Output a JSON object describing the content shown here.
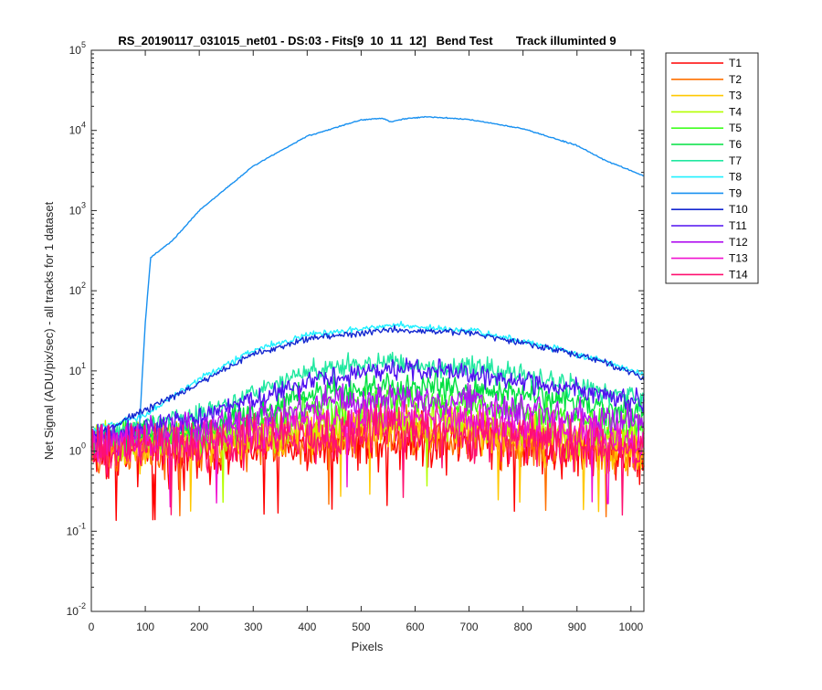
{
  "chart_data": {
    "type": "line",
    "title": "RS_20190117_031015_net01 - DS:03 - Fits[9  10  11  12]   Bend Test       Track illuminted 9",
    "xlabel": "Pixels",
    "ylabel": "Net Signal (ADU/pix/sec) - all tracks for 1 dataset",
    "xlim": [
      0,
      1024
    ],
    "ylim": [
      0.01,
      100000
    ],
    "yscale": "log",
    "grid": false,
    "legend_position": "outside-top-right",
    "x_ticks": [
      0,
      100,
      200,
      300,
      400,
      500,
      600,
      700,
      800,
      900,
      1000
    ],
    "x_tick_labels": [
      "0",
      "100",
      "200",
      "300",
      "400",
      "500",
      "600",
      "700",
      "800",
      "900",
      "1000"
    ],
    "y_tick_labels": [
      {
        "base": "10",
        "exp": "-2"
      },
      {
        "base": "10",
        "exp": "-1"
      },
      {
        "base": "10",
        "exp": "0"
      },
      {
        "base": "10",
        "exp": "1"
      },
      {
        "base": "10",
        "exp": "2"
      },
      {
        "base": "10",
        "exp": "3"
      },
      {
        "base": "10",
        "exp": "4"
      },
      {
        "base": "10",
        "exp": "5"
      }
    ],
    "series": [
      {
        "name": "T1",
        "color": "#ff0000",
        "points": [
          [
            0,
            0.9
          ],
          [
            200,
            0.95
          ],
          [
            400,
            1.2
          ],
          [
            550,
            1.4
          ],
          [
            700,
            1.3
          ],
          [
            850,
            1.1
          ],
          [
            1024,
            0.85
          ]
        ],
        "noise": 0.5
      },
      {
        "name": "T2",
        "color": "#ff7000",
        "points": [
          [
            0,
            1.0
          ],
          [
            200,
            1.05
          ],
          [
            400,
            1.4
          ],
          [
            550,
            1.6
          ],
          [
            700,
            1.5
          ],
          [
            850,
            1.2
          ],
          [
            1024,
            0.9
          ]
        ],
        "noise": 0.45
      },
      {
        "name": "T3",
        "color": "#ffc800",
        "points": [
          [
            0,
            1.1
          ],
          [
            200,
            1.2
          ],
          [
            400,
            1.7
          ],
          [
            550,
            2.0
          ],
          [
            700,
            1.8
          ],
          [
            850,
            1.4
          ],
          [
            1024,
            1.0
          ]
        ],
        "noise": 0.4
      },
      {
        "name": "T4",
        "color": "#b4ff00",
        "points": [
          [
            0,
            1.2
          ],
          [
            200,
            1.4
          ],
          [
            400,
            2.1
          ],
          [
            550,
            2.6
          ],
          [
            700,
            2.3
          ],
          [
            850,
            1.7
          ],
          [
            1024,
            1.3
          ]
        ],
        "noise": 0.35
      },
      {
        "name": "T5",
        "color": "#40ff20",
        "points": [
          [
            0,
            1.3
          ],
          [
            200,
            1.6
          ],
          [
            400,
            3.2
          ],
          [
            550,
            4.3
          ],
          [
            700,
            3.9
          ],
          [
            850,
            2.8
          ],
          [
            1024,
            2.0
          ]
        ],
        "noise": 0.3
      },
      {
        "name": "T6",
        "color": "#00e040",
        "points": [
          [
            0,
            1.4
          ],
          [
            200,
            1.9
          ],
          [
            400,
            5.0
          ],
          [
            550,
            6.8
          ],
          [
            700,
            6.1
          ],
          [
            850,
            4.4
          ],
          [
            1024,
            3.0
          ]
        ],
        "noise": 0.25
      },
      {
        "name": "T7",
        "color": "#20e8a0",
        "points": [
          [
            0,
            1.5
          ],
          [
            200,
            3.0
          ],
          [
            400,
            9.5
          ],
          [
            550,
            12.5
          ],
          [
            700,
            11.0
          ],
          [
            850,
            7.5
          ],
          [
            1024,
            4.5
          ]
        ],
        "noise": 0.2
      },
      {
        "name": "T8",
        "color": "#20f0ff",
        "points": [
          [
            0,
            1.8
          ],
          [
            100,
            2.8
          ],
          [
            200,
            8.0
          ],
          [
            300,
            18.0
          ],
          [
            400,
            28.0
          ],
          [
            550,
            37.0
          ],
          [
            700,
            32.0
          ],
          [
            850,
            20.0
          ],
          [
            950,
            13.0
          ],
          [
            1024,
            9.0
          ]
        ],
        "noise": 0.06
      },
      {
        "name": "T9",
        "color": "#1890f0",
        "points": [
          [
            0,
            1.6
          ],
          [
            88,
            1.5
          ],
          [
            100,
            40.0
          ],
          [
            110,
            260.0
          ],
          [
            150,
            420.0
          ],
          [
            200,
            1000.0
          ],
          [
            300,
            3600.0
          ],
          [
            400,
            8500.0
          ],
          [
            500,
            13500.0
          ],
          [
            540,
            14200.0
          ],
          [
            555,
            12800.0
          ],
          [
            580,
            14000.0
          ],
          [
            620,
            14800.0
          ],
          [
            700,
            13700.0
          ],
          [
            800,
            10500.0
          ],
          [
            900,
            6500.0
          ],
          [
            950,
            4300.0
          ],
          [
            1024,
            2700.0
          ]
        ],
        "noise": 0.01
      },
      {
        "name": "T10",
        "color": "#1428d0",
        "points": [
          [
            0,
            1.5
          ],
          [
            200,
            7.0
          ],
          [
            300,
            16.0
          ],
          [
            400,
            25.0
          ],
          [
            550,
            33.0
          ],
          [
            700,
            30.0
          ],
          [
            850,
            19.0
          ],
          [
            950,
            13.0
          ],
          [
            1024,
            8.0
          ]
        ],
        "noise": 0.06
      },
      {
        "name": "T11",
        "color": "#5010f0",
        "points": [
          [
            0,
            1.4
          ],
          [
            200,
            2.6
          ],
          [
            400,
            7.5
          ],
          [
            550,
            10.5
          ],
          [
            700,
            9.5
          ],
          [
            850,
            6.5
          ],
          [
            1024,
            4.0
          ]
        ],
        "noise": 0.2
      },
      {
        "name": "T12",
        "color": "#b010f0",
        "points": [
          [
            0,
            1.3
          ],
          [
            200,
            1.9
          ],
          [
            400,
            3.6
          ],
          [
            550,
            4.6
          ],
          [
            700,
            4.0
          ],
          [
            850,
            3.0
          ],
          [
            1024,
            2.1
          ]
        ],
        "noise": 0.3
      },
      {
        "name": "T13",
        "color": "#f010d0",
        "points": [
          [
            0,
            1.2
          ],
          [
            200,
            1.4
          ],
          [
            400,
            2.2
          ],
          [
            550,
            2.6
          ],
          [
            700,
            2.3
          ],
          [
            850,
            1.8
          ],
          [
            1024,
            1.3
          ]
        ],
        "noise": 0.35
      },
      {
        "name": "T14",
        "color": "#ff1070",
        "points": [
          [
            0,
            1.0
          ],
          [
            200,
            1.1
          ],
          [
            400,
            1.5
          ],
          [
            550,
            1.8
          ],
          [
            700,
            1.6
          ],
          [
            850,
            1.3
          ],
          [
            1024,
            1.0
          ]
        ],
        "noise": 0.45
      }
    ]
  }
}
